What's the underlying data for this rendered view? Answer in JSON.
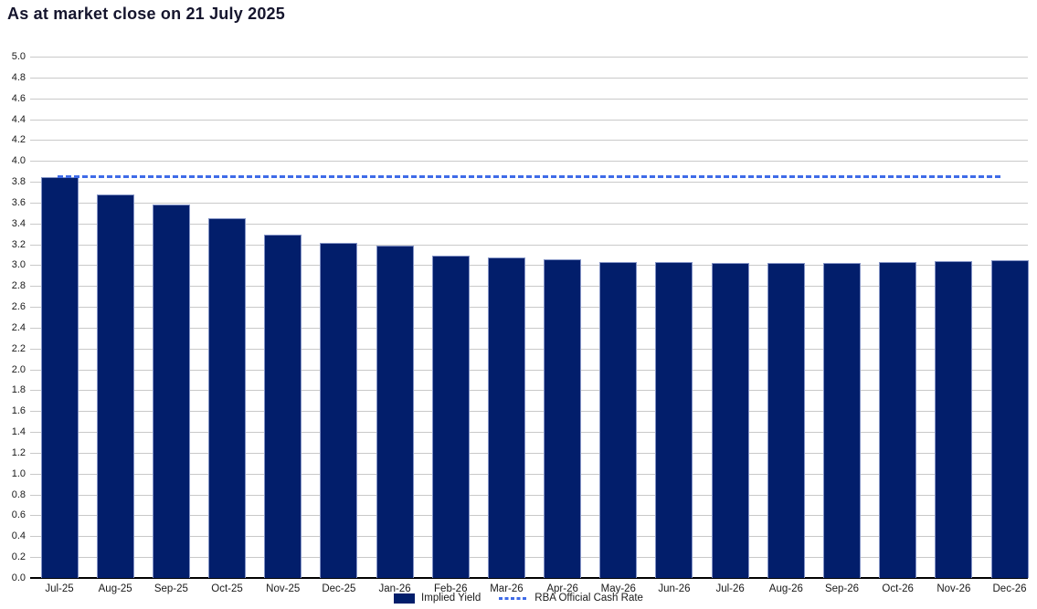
{
  "title": "As at market close on 21 July 2025",
  "chart_data": {
    "type": "bar",
    "title": "As at market close on 21 July 2025",
    "categories": [
      "Jul-25",
      "Aug-25",
      "Sep-25",
      "Oct-25",
      "Nov-25",
      "Dec-25",
      "Jan-26",
      "Feb-26",
      "Mar-26",
      "Apr-26",
      "May-26",
      "Jun-26",
      "Jul-26",
      "Aug-26",
      "Sep-26",
      "Oct-26",
      "Nov-26",
      "Dec-26"
    ],
    "series": [
      {
        "name": "Implied Yield",
        "type": "bar",
        "color": "#021e6b",
        "values": [
          3.84,
          3.68,
          3.58,
          3.45,
          3.29,
          3.21,
          3.19,
          3.09,
          3.07,
          3.06,
          3.03,
          3.03,
          3.02,
          3.02,
          3.02,
          3.03,
          3.04,
          3.05
        ]
      },
      {
        "name": "RBA Official Cash Rate",
        "type": "dashed-line",
        "color": "#3f6be8",
        "value": 3.85
      }
    ],
    "xlabel": "",
    "ylabel": "",
    "ylim": [
      0.0,
      5.0
    ],
    "ytick_step": 0.2,
    "grid": true,
    "legend_position": "bottom"
  },
  "legend": {
    "items": [
      {
        "label": "Implied Yield",
        "swatch": "navy-square-icon"
      },
      {
        "label": "RBA Official Cash Rate",
        "swatch": "blue-dashed-line-icon"
      }
    ]
  },
  "colors": {
    "bar_fill": "#021e6b",
    "bar_border": "#8494c6",
    "dashed_line": "#3f6be8",
    "gridline": "#c9c9c9",
    "axis": "#000000",
    "title_text": "#15152d",
    "label_text": "#1a1a1a",
    "background": "#ffffff"
  }
}
